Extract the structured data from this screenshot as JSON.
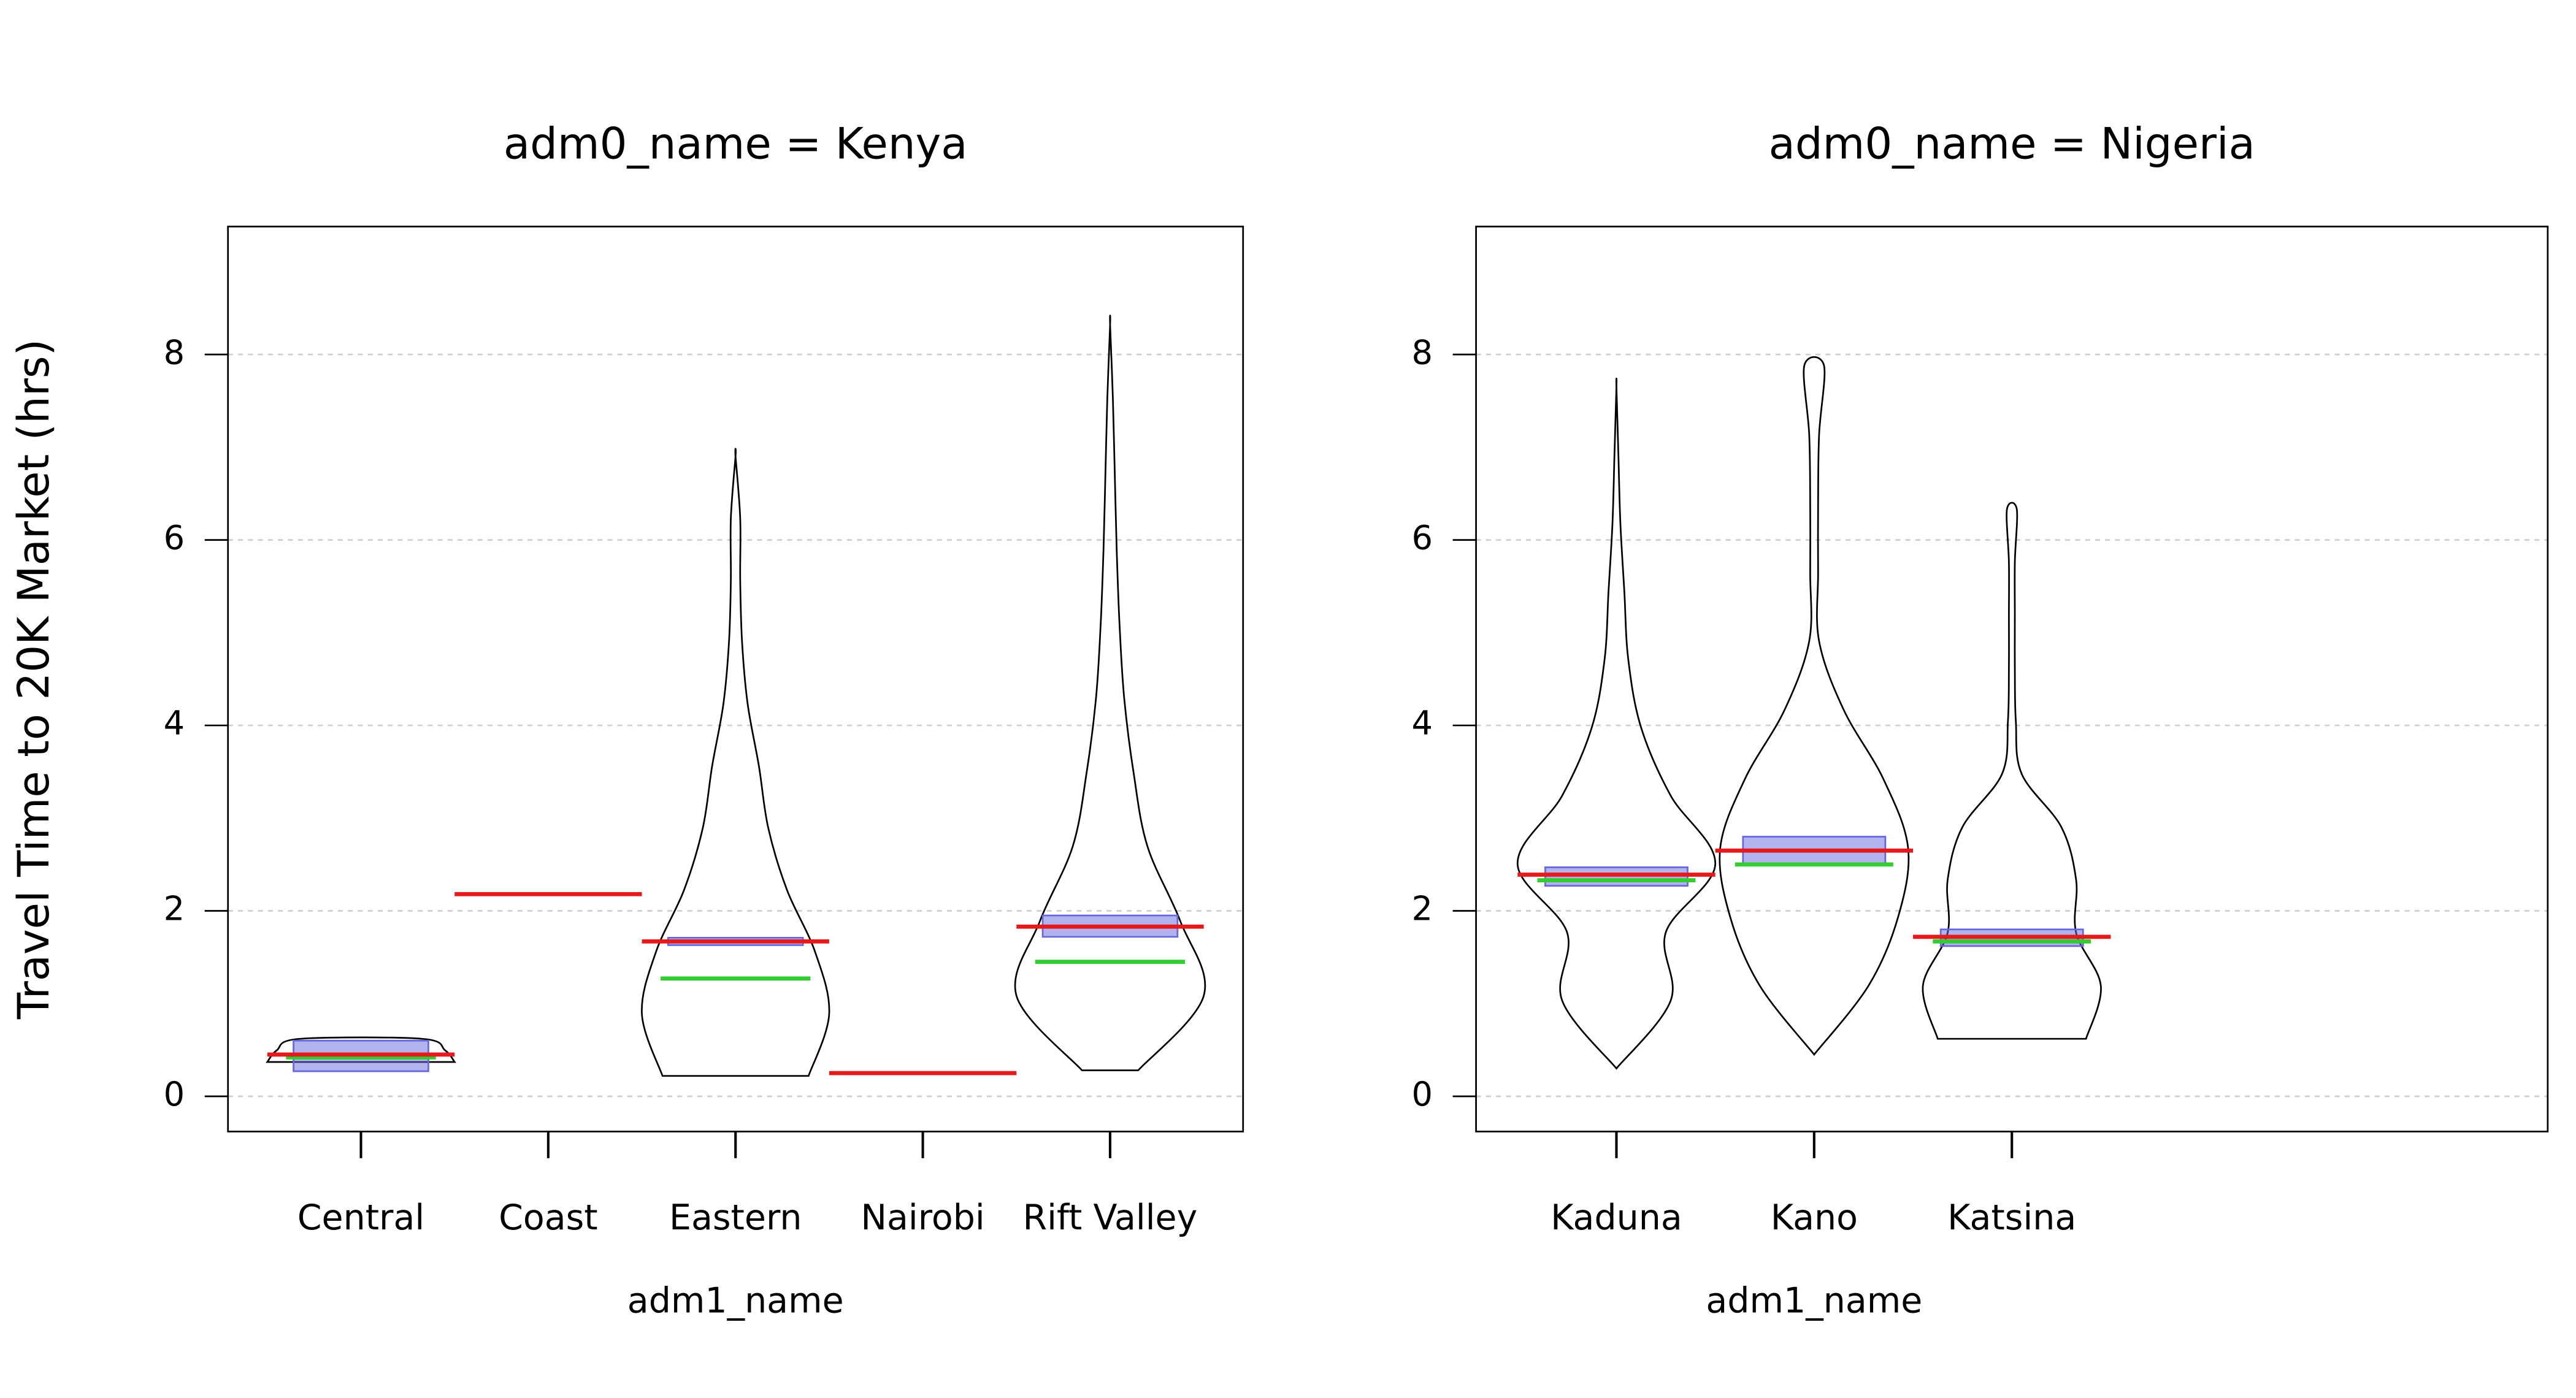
{
  "chart_data": [
    {
      "type": "violin",
      "title": "adm0_name = Kenya",
      "xlabel": "adm1_name",
      "ylabel": "Travel Time to 20K Market (hrs)",
      "categories": [
        "Central",
        "Coast",
        "Eastern",
        "Nairobi",
        "Rift Valley"
      ],
      "means": [
        0.45,
        2.18,
        1.67,
        0.25,
        1.83
      ],
      "medians": [
        0.42,
        null,
        1.27,
        null,
        1.45
      ],
      "interval_low": [
        0.27,
        null,
        1.63,
        null,
        1.72
      ],
      "interval_high": [
        0.6,
        null,
        1.71,
        null,
        1.95
      ],
      "mins": [
        0.37,
        null,
        0.22,
        null,
        0.28
      ],
      "maxs": [
        0.62,
        null,
        6.9,
        null,
        8.32
      ],
      "density": [
        [
          1,
          0.9,
          0.65
        ],
        null,
        [
          0.78,
          1,
          0.85,
          0.55,
          0.35,
          0.25,
          0.13,
          0.07,
          0.05,
          0.05,
          0
        ],
        null,
        [
          0.3,
          1,
          0.75,
          0.4,
          0.25,
          0.15,
          0.1,
          0.07,
          0.05,
          0.03,
          0
        ]
      ],
      "mean_color": "#e41a1c",
      "median_color": "#33cc33",
      "interval_color": "#6666dd",
      "xlim": [
        0.29,
        5.71
      ],
      "ylim": [
        -0.38,
        9.38
      ],
      "yticks": [
        0,
        2,
        4,
        6,
        8
      ],
      "grid": true
    },
    {
      "type": "violin",
      "title": "adm0_name = Nigeria",
      "xlabel": "adm1_name",
      "categories": [
        "Kaduna",
        "Kano",
        "Katsina"
      ],
      "means": [
        2.39,
        2.65,
        1.72
      ],
      "medians": [
        2.33,
        2.5,
        1.67
      ],
      "interval_low": [
        2.27,
        2.5,
        1.62
      ],
      "interval_high": [
        2.47,
        2.8,
        1.8
      ],
      "mins": [
        0.3,
        0.45,
        0.62
      ],
      "maxs": [
        7.65,
        7.88,
        6.33
      ],
      "density": [
        [
          0,
          0.55,
          0.5,
          1,
          0.55,
          0.25,
          0.12,
          0.08,
          0.04,
          0.02,
          0
        ],
        [
          0,
          0.55,
          0.85,
          0.95,
          0.7,
          0.3,
          0.05,
          0.04,
          0.04,
          0.05,
          0.1
        ],
        [
          0.75,
          0.9,
          0.65,
          0.65,
          0.5,
          0.1,
          0.04,
          0.03,
          0.03,
          0.03,
          0.05
        ]
      ],
      "mean_color": "#e41a1c",
      "median_color": "#33cc33",
      "interval_color": "#6666dd",
      "xlim": [
        0.29,
        5.71
      ],
      "ylim": [
        -0.38,
        9.38
      ],
      "yticks": [
        0,
        2,
        4,
        6,
        8
      ],
      "grid": true
    }
  ]
}
